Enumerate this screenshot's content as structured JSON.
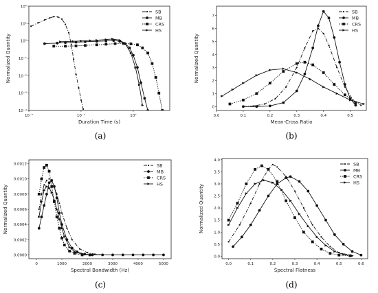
{
  "chart_data": [
    {
      "type": "line",
      "caption": "(a)",
      "xlabel": "Duration Time (s)",
      "ylabel": "Normalized Quantity",
      "xscale": "log",
      "yscale": "log",
      "xlim": [
        0.01,
        5
      ],
      "ylim": [
        0.0001,
        100
      ],
      "xticks": [
        0.01,
        0.1,
        1
      ],
      "xticklabels": [
        "10⁻²",
        "10⁻¹",
        "10⁰"
      ],
      "yticks": [
        0.0001,
        0.001,
        0.01,
        0.1,
        1,
        10,
        100
      ],
      "yticklabels": [
        "10⁻⁴",
        "10⁻³",
        "10⁻²",
        "10⁻¹",
        "10⁰",
        "10¹",
        "10²"
      ],
      "legend": "top-right",
      "series": [
        {
          "name": "SB",
          "marker": "dot",
          "dash": "dashdot",
          "x": [
            0.011,
            0.015,
            0.02,
            0.025,
            0.03,
            0.036,
            0.043,
            0.05,
            0.058,
            0.065,
            0.072,
            0.08,
            0.09,
            0.1,
            0.11
          ],
          "y": [
            7,
            11,
            16,
            21,
            25,
            24,
            18,
            9,
            3,
            0.6,
            0.09,
            0.012,
            0.002,
            0.0004,
            0.00012
          ]
        },
        {
          "name": "MB",
          "marker": "circle",
          "dash": "solid",
          "x": [
            0.02,
            0.035,
            0.05,
            0.08,
            0.12,
            0.2,
            0.3,
            0.42,
            0.55,
            0.7,
            0.85,
            1.0,
            1.2,
            1.4,
            1.65,
            1.9
          ],
          "y": [
            0.7,
            0.75,
            0.8,
            0.85,
            0.9,
            0.95,
            1.0,
            1.05,
            0.95,
            0.7,
            0.4,
            0.15,
            0.03,
            0.004,
            0.0005,
            0.0001
          ]
        },
        {
          "name": "CRS",
          "marker": "square",
          "dash": "dotted",
          "x": [
            0.03,
            0.05,
            0.08,
            0.12,
            0.2,
            0.3,
            0.45,
            0.65,
            0.9,
            1.2,
            1.5,
            1.9,
            2.3,
            2.7,
            3.1,
            3.6
          ],
          "y": [
            0.5,
            0.5,
            0.52,
            0.55,
            0.6,
            0.65,
            0.7,
            0.72,
            0.68,
            0.6,
            0.4,
            0.2,
            0.05,
            0.008,
            0.001,
            0.0001
          ]
        },
        {
          "name": "HS",
          "marker": "triangle",
          "dash": "solid",
          "x": [
            0.04,
            0.07,
            0.1,
            0.15,
            0.2,
            0.3,
            0.4,
            0.55,
            0.7,
            0.9,
            1.1,
            1.3,
            1.5
          ],
          "y": [
            0.9,
            0.95,
            1.0,
            1.05,
            1.1,
            1.2,
            1.3,
            1.1,
            0.7,
            0.2,
            0.03,
            0.003,
            0.0002
          ]
        }
      ]
    },
    {
      "type": "line",
      "caption": "(b)",
      "xlabel": "Mean-Cross Ratio",
      "ylabel": "Normalized Quantity",
      "xlim": [
        0.0,
        0.56
      ],
      "ylim": [
        -0.3,
        7.7
      ],
      "xticks": [
        0.0,
        0.1,
        0.2,
        0.3,
        0.4,
        0.5
      ],
      "xticklabels": [
        "0.0",
        "0.1",
        "0.2",
        "0.3",
        "0.4",
        "0.5"
      ],
      "yticks": [
        0,
        1,
        2,
        3,
        4,
        5,
        6,
        7
      ],
      "yticklabels": [
        "0",
        "1",
        "2",
        "3",
        "4",
        "5",
        "6",
        "7"
      ],
      "legend": "top-right",
      "series": [
        {
          "name": "SB",
          "marker": "dot",
          "dash": "dashdot",
          "x": [
            0.1,
            0.14,
            0.18,
            0.22,
            0.26,
            0.3,
            0.33,
            0.36,
            0.38,
            0.4,
            0.42,
            0.45,
            0.48,
            0.51,
            0.54
          ],
          "y": [
            0.0,
            0.05,
            0.2,
            0.6,
            1.5,
            3.0,
            4.5,
            5.8,
            6.0,
            5.6,
            4.7,
            3.0,
            1.5,
            0.5,
            0.1
          ]
        },
        {
          "name": "MB",
          "marker": "circle",
          "dash": "solid",
          "x": [
            0.1,
            0.15,
            0.2,
            0.25,
            0.3,
            0.33,
            0.36,
            0.38,
            0.4,
            0.42,
            0.44,
            0.46,
            0.48,
            0.5,
            0.52
          ],
          "y": [
            0.0,
            0.0,
            0.05,
            0.3,
            1.2,
            2.5,
            4.5,
            6.2,
            7.3,
            6.8,
            5.3,
            3.4,
            1.7,
            0.6,
            0.1
          ]
        },
        {
          "name": "CRS",
          "marker": "square",
          "dash": "dotted",
          "x": [
            0.05,
            0.1,
            0.15,
            0.2,
            0.25,
            0.3,
            0.33,
            0.36,
            0.4,
            0.44,
            0.48,
            0.52
          ],
          "y": [
            0.2,
            0.5,
            1.0,
            1.8,
            2.7,
            3.3,
            3.4,
            3.2,
            2.6,
            1.7,
            0.9,
            0.3
          ]
        },
        {
          "name": "HS",
          "marker": "triangle",
          "dash": "solid",
          "x": [
            0.02,
            0.06,
            0.1,
            0.15,
            0.2,
            0.25,
            0.3,
            0.35,
            0.4,
            0.45,
            0.5,
            0.55
          ],
          "y": [
            0.8,
            1.3,
            1.8,
            2.4,
            2.8,
            2.9,
            2.6,
            2.1,
            1.5,
            1.0,
            0.5,
            0.2
          ]
        }
      ]
    },
    {
      "type": "line",
      "caption": "(c)",
      "xlabel": "Spectral Bandwidth (Hz)",
      "ylabel": "Normalized Quantity",
      "xlim": [
        -300,
        5300
      ],
      "ylim": [
        -5e-05,
        0.00125
      ],
      "xticks": [
        0,
        1000,
        2000,
        3000,
        4000,
        5000
      ],
      "xticklabels": [
        "0",
        "1000",
        "2000",
        "3000",
        "4000",
        "5000"
      ],
      "yticks": [
        0.0,
        0.0002,
        0.0004,
        0.0006,
        0.0008,
        0.001,
        0.0012
      ],
      "yticklabels": [
        "0.0000",
        "0.0002",
        "0.0004",
        "0.0006",
        "0.0008",
        "0.0010",
        "0.0012"
      ],
      "legend": "top-right",
      "series": [
        {
          "name": "SB",
          "marker": "dot",
          "dash": "dashdot",
          "x": [
            100,
            200,
            300,
            400,
            500,
            600,
            700,
            800,
            900,
            1000,
            1200,
            1400,
            1700,
            2000,
            2300,
            2600
          ],
          "y": [
            0.0006,
            0.0008,
            0.00092,
            0.00098,
            0.001,
            0.00097,
            0.0009,
            0.0008,
            0.00068,
            0.00055,
            0.00035,
            0.0002,
            8e-05,
            3e-05,
            1e-05,
            0.0
          ]
        },
        {
          "name": "MB",
          "marker": "circle",
          "dash": "solid",
          "x": [
            100,
            200,
            300,
            400,
            500,
            600,
            700,
            800,
            900,
            1000,
            1200,
            1400,
            1600,
            1900,
            2200,
            2600,
            3000,
            3400,
            3800,
            4200,
            4600,
            5000
          ],
          "y": [
            0.00035,
            0.0005,
            0.00065,
            0.0008,
            0.00095,
            0.00098,
            0.0009,
            0.00075,
            0.00055,
            0.0004,
            0.0002,
            9e-05,
            4e-05,
            1e-05,
            0.0,
            0.0,
            0.0,
            0.0,
            0.0,
            0.0,
            0.0,
            0.0
          ]
        },
        {
          "name": "CRS",
          "marker": "square",
          "dash": "dotted",
          "x": [
            100,
            200,
            300,
            400,
            500,
            600,
            700,
            800,
            900,
            1000,
            1100,
            1300,
            1500,
            1800,
            2100
          ],
          "y": [
            0.0008,
            0.001,
            0.00115,
            0.00118,
            0.0011,
            0.0009,
            0.0007,
            0.0005,
            0.00035,
            0.00022,
            0.00013,
            5e-05,
            2e-05,
            0.0,
            0.0
          ]
        },
        {
          "name": "HS",
          "marker": "triangle",
          "dash": "solid",
          "x": [
            100,
            200,
            300,
            400,
            500,
            600,
            700,
            800,
            900,
            1000,
            1100,
            1300,
            1500,
            1800,
            2100
          ],
          "y": [
            0.0005,
            0.0007,
            0.00085,
            0.0009,
            0.00088,
            0.00082,
            0.00072,
            0.0006,
            0.00047,
            0.00035,
            0.00024,
            0.0001,
            4e-05,
            1e-05,
            0.0
          ]
        }
      ]
    },
    {
      "type": "line",
      "caption": "(d)",
      "xlabel": "Spectral Flatness",
      "ylabel": "Normalized Quantity",
      "xlim": [
        -0.03,
        0.63
      ],
      "ylim": [
        -0.1,
        4.05
      ],
      "xticks": [
        0.0,
        0.1,
        0.2,
        0.3,
        0.4,
        0.5,
        0.6
      ],
      "xticklabels": [
        "0.0",
        "0.1",
        "0.2",
        "0.3",
        "0.4",
        "0.5",
        "0.6"
      ],
      "yticks": [
        0.0,
        0.5,
        1.0,
        1.5,
        2.0,
        2.5,
        3.0,
        3.5,
        4.0
      ],
      "yticklabels": [
        "0.0",
        "0.5",
        "1.0",
        "1.5",
        "2.0",
        "2.5",
        "3.0",
        "3.5",
        "4.0"
      ],
      "legend": "top-right",
      "series": [
        {
          "name": "SB",
          "marker": "dot",
          "dash": "dashdot",
          "x": [
            0.0,
            0.05,
            0.1,
            0.14,
            0.18,
            0.2,
            0.22,
            0.26,
            0.3,
            0.34,
            0.38,
            0.42,
            0.46,
            0.5,
            0.55
          ],
          "y": [
            0.6,
            1.3,
            2.2,
            3.0,
            3.6,
            3.8,
            3.7,
            3.3,
            2.7,
            2.0,
            1.3,
            0.8,
            0.4,
            0.15,
            0.05
          ]
        },
        {
          "name": "MB",
          "marker": "circle",
          "dash": "solid",
          "x": [
            0.02,
            0.06,
            0.1,
            0.14,
            0.18,
            0.22,
            0.26,
            0.28,
            0.32,
            0.36,
            0.4,
            0.44,
            0.48,
            0.52,
            0.56,
            0.6
          ],
          "y": [
            0.4,
            0.8,
            1.3,
            1.9,
            2.5,
            3.0,
            3.25,
            3.3,
            3.1,
            2.7,
            2.1,
            1.5,
            0.9,
            0.5,
            0.2,
            0.05
          ]
        },
        {
          "name": "CRS",
          "marker": "square",
          "dash": "dotted",
          "x": [
            0.0,
            0.04,
            0.08,
            0.12,
            0.15,
            0.18,
            0.22,
            0.26,
            0.3,
            0.34,
            0.38,
            0.42,
            0.46,
            0.5,
            0.55
          ],
          "y": [
            1.5,
            2.2,
            3.0,
            3.6,
            3.75,
            3.6,
            3.1,
            2.3,
            1.6,
            1.0,
            0.6,
            0.3,
            0.12,
            0.05,
            0.02
          ]
        },
        {
          "name": "HS",
          "marker": "triangle",
          "dash": "solid",
          "x": [
            0.0,
            0.04,
            0.08,
            0.12,
            0.16,
            0.2,
            0.24,
            0.28,
            0.32,
            0.36,
            0.4,
            0.44,
            0.48,
            0.52,
            0.56
          ],
          "y": [
            1.3,
            2.0,
            2.6,
            3.0,
            3.15,
            3.05,
            2.75,
            2.3,
            1.75,
            1.25,
            0.8,
            0.45,
            0.2,
            0.08,
            0.02
          ]
        }
      ]
    }
  ]
}
